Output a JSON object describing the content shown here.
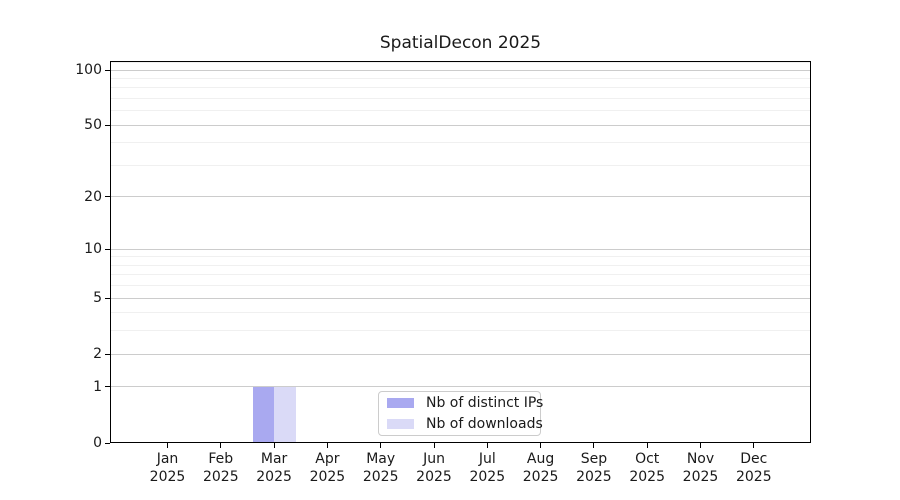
{
  "title": "SpatialDecon 2025",
  "chart_data": {
    "type": "bar",
    "title": "SpatialDecon 2025",
    "categories": [
      "Jan",
      "Feb",
      "Mar",
      "Apr",
      "May",
      "Jun",
      "Jul",
      "Aug",
      "Sep",
      "Oct",
      "Nov",
      "Dec"
    ],
    "x_tick_year": "2025",
    "series": [
      {
        "name": "Nb of distinct IPs",
        "color": "#a9a9f0",
        "values": [
          0,
          0,
          1,
          0,
          0,
          0,
          0,
          0,
          0,
          0,
          0,
          0
        ]
      },
      {
        "name": "Nb of downloads",
        "color": "#dadaf7",
        "values": [
          0,
          0,
          1,
          0,
          0,
          0,
          0,
          0,
          0,
          0,
          0,
          0
        ]
      }
    ],
    "y_axis": {
      "scale": "log1p",
      "min": 0,
      "max": 112,
      "major_ticks": [
        0,
        1,
        2,
        5,
        10,
        20,
        50,
        100
      ],
      "minor_ticks": [
        3,
        4,
        6,
        7,
        8,
        9,
        30,
        40,
        60,
        70,
        80,
        90,
        110
      ]
    },
    "xlabel": "",
    "ylabel": "",
    "legend_position": "lower center",
    "grid": "both"
  },
  "colors": {
    "major_grid": "#cccccc",
    "minor_grid": "#f0f0f0",
    "axis": "#000000",
    "text": "#1a1a1a",
    "legend_border": "#cccccc",
    "background": "#ffffff"
  }
}
